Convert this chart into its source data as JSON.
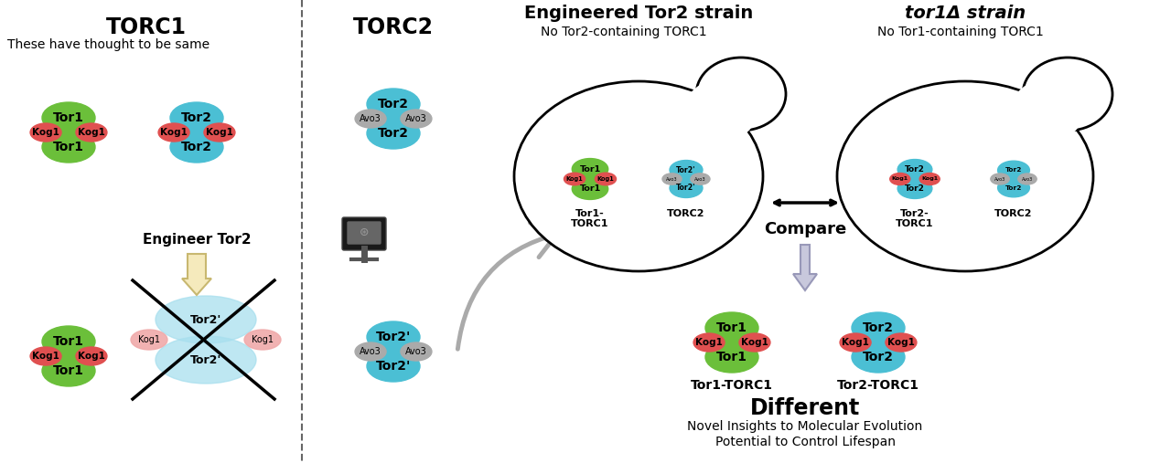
{
  "bg_color": "#ffffff",
  "green_color": "#6BBF3A",
  "teal_color": "#4BBFD4",
  "light_teal_color": "#A8DFEE",
  "red_color": "#E05050",
  "light_red_color": "#F0AAAA",
  "gray_color": "#AAAAAA",
  "title_torc1": "TORC1",
  "title_torc2": "TORC2",
  "subtitle_same": "These have thought to be same",
  "engineer_label": "Engineer Tor2",
  "engineered_title": "Engineered Tor2 strain",
  "engineered_sub": "No Tor2-containing TORC1",
  "tor1d_title": "tor1Δ strain",
  "tor1d_sub": "No Tor1-containing TORC1",
  "compare_label": "Compare",
  "different_label": "Different",
  "insights_line1": "Novel Insights to Molecular Evolution",
  "insights_line2": "Potential to Control Lifespan"
}
